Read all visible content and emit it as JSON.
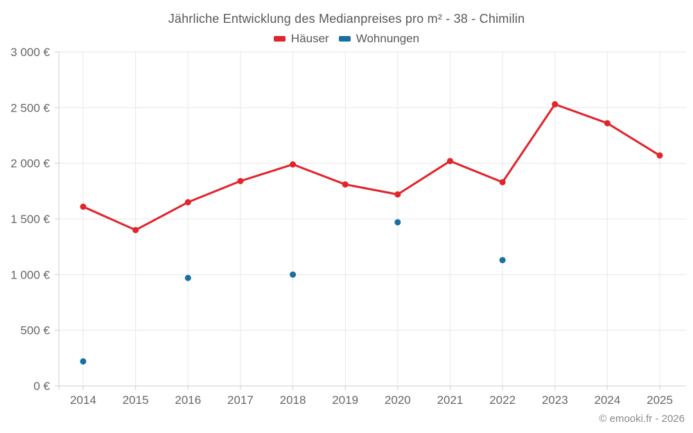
{
  "title": "Jährliche Entwicklung des Medianpreises pro m² - 38 - Chimilin",
  "footer": "© emooki.fr - 2026",
  "legend": {
    "items": [
      {
        "label": "Häuser",
        "color": "#e2242b"
      },
      {
        "label": "Wohnungen",
        "color": "#176fa5"
      }
    ]
  },
  "colors": {
    "hauser": "#e2242b",
    "wohnungen": "#176fa5",
    "grid": "#e7e7e7",
    "axis": "#cfcfcf",
    "tick_text": "#666666",
    "title_text": "#595959"
  },
  "chart_data": {
    "type": "line",
    "title": "Jährliche Entwicklung des Medianpreises pro m² - 38 - Chimilin",
    "categories": [
      "2014",
      "2015",
      "2016",
      "2017",
      "2018",
      "2019",
      "2020",
      "2021",
      "2022",
      "2023",
      "2024",
      "2025"
    ],
    "series": [
      {
        "name": "Häuser",
        "color": "#e2242b",
        "style": "line+points",
        "values": [
          1610,
          1400,
          1650,
          1840,
          1990,
          1810,
          1720,
          2020,
          1830,
          2530,
          2360,
          2070
        ]
      },
      {
        "name": "Wohnungen",
        "color": "#176fa5",
        "style": "points",
        "values": [
          220,
          null,
          970,
          null,
          1000,
          null,
          1470,
          null,
          1130,
          null,
          null,
          null
        ]
      }
    ],
    "xlabel": "",
    "ylabel": "",
    "ylim": [
      0,
      3000
    ],
    "yticks": [
      0,
      500,
      1000,
      1500,
      2000,
      2500,
      3000
    ],
    "ytick_labels": [
      "0 €",
      "500 €",
      "1 000 €",
      "1 500 €",
      "2 000 €",
      "2 500 €",
      "3 000 €"
    ],
    "grid": true,
    "legend_position": "top"
  }
}
